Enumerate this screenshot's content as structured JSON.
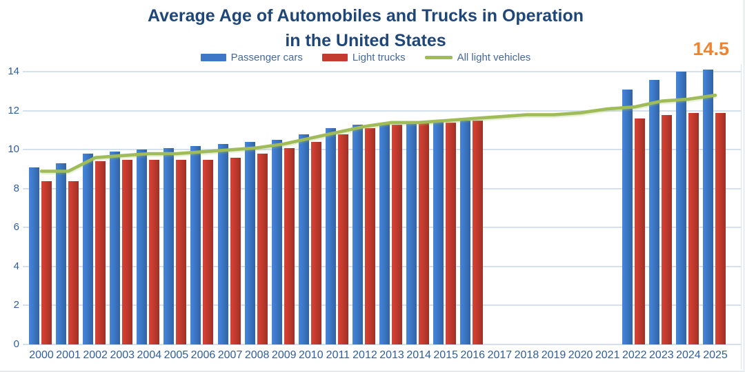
{
  "title": {
    "line1": "Average Age of Automobiles and Trucks in Operation",
    "line2": "in the United States"
  },
  "annotation": {
    "text": "14.5",
    "color": "#F0832D",
    "refers_to": "2025"
  },
  "colors": {
    "title": "#1F4678",
    "axis_labels": "#2E5D9E",
    "legend_text": "#44679A",
    "gridline": "#D5E0EE",
    "plot_border": "#DCE3EA",
    "background": "#FFFFFF",
    "passenger_cars": "#3D77C6",
    "light_trucks": "#C23B2E",
    "all_light_vehicles": "#9FBC58",
    "annotation_orange": "#F0832D"
  },
  "chart_data": {
    "type": "bar",
    "subtype": "grouped-bars-with-line-overlay",
    "title": "Average Age of Automobiles and Trucks in Operation in the United States",
    "xlabel": "",
    "ylabel": "",
    "ylim": [
      0,
      14.4
    ],
    "yticks": [
      0,
      2,
      4,
      6,
      8,
      10,
      12,
      14
    ],
    "grid": true,
    "legend_position": "top",
    "categories": [
      "2000",
      "2001",
      "2002",
      "2003",
      "2004",
      "2005",
      "2006",
      "2007",
      "2008",
      "2009",
      "2010",
      "2011",
      "2012",
      "2013",
      "2014",
      "2015",
      "2016",
      "2017",
      "2018",
      "2019",
      "2020",
      "2021",
      "2022",
      "2023",
      "2024",
      "2025"
    ],
    "series": [
      {
        "name": "Passenger cars",
        "type": "bar",
        "color": "#3D77C6",
        "values": [
          9.1,
          9.3,
          9.8,
          9.9,
          10.0,
          10.1,
          10.2,
          10.3,
          10.4,
          10.5,
          10.8,
          11.1,
          11.3,
          11.4,
          11.4,
          11.5,
          11.5,
          null,
          null,
          null,
          null,
          null,
          13.1,
          13.6,
          14.0,
          14.1
        ]
      },
      {
        "name": "Light trucks",
        "type": "bar",
        "color": "#C23B2E",
        "values": [
          8.4,
          8.4,
          9.4,
          9.5,
          9.5,
          9.5,
          9.5,
          9.6,
          9.8,
          10.1,
          10.4,
          10.8,
          11.1,
          11.3,
          11.4,
          11.4,
          11.5,
          null,
          null,
          null,
          null,
          null,
          11.6,
          11.8,
          11.9,
          11.9
        ]
      },
      {
        "name": "All light vehicles",
        "type": "line",
        "color": "#9FBC58",
        "values": [
          8.9,
          8.9,
          9.6,
          9.7,
          9.8,
          9.8,
          9.9,
          10.0,
          10.1,
          10.3,
          10.6,
          10.9,
          11.2,
          11.4,
          11.4,
          11.5,
          11.6,
          11.7,
          11.8,
          11.8,
          11.9,
          12.1,
          12.2,
          12.5,
          12.6,
          12.8
        ]
      }
    ],
    "annotations": [
      {
        "text": "14.5",
        "near_category": "2025",
        "color": "#F0832D"
      }
    ]
  }
}
